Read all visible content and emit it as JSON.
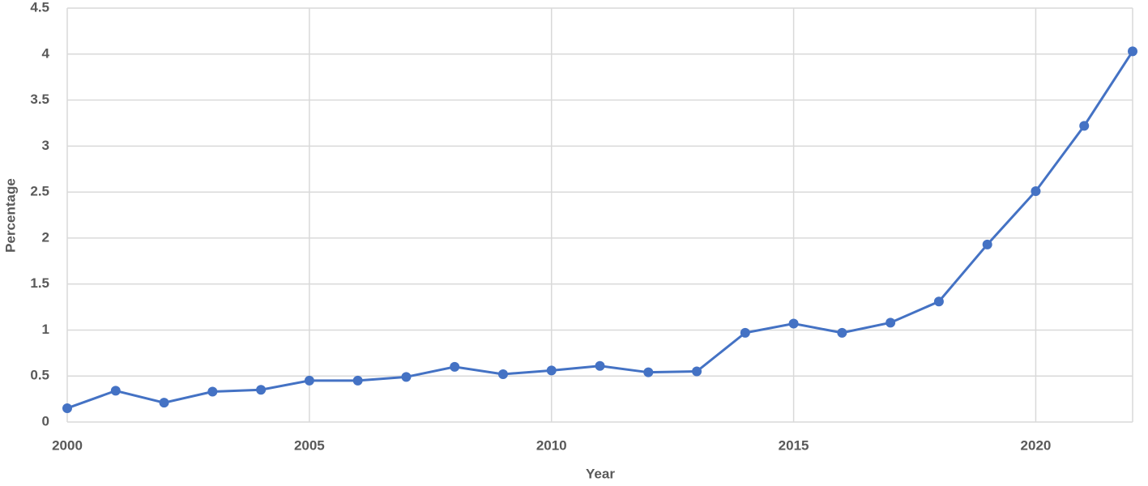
{
  "chart_data": {
    "type": "line",
    "x_label": "Year",
    "y_label": "Percentage",
    "x": [
      2000,
      2001,
      2002,
      2003,
      2004,
      2005,
      2006,
      2007,
      2008,
      2009,
      2010,
      2011,
      2012,
      2013,
      2014,
      2015,
      2016,
      2017,
      2018,
      2019,
      2020,
      2021,
      2022
    ],
    "series": [
      {
        "name": "Percentage",
        "color": "#4472c4",
        "values": [
          0.15,
          0.34,
          0.21,
          0.33,
          0.35,
          0.45,
          0.45,
          0.49,
          0.6,
          0.52,
          0.56,
          0.61,
          0.54,
          0.55,
          0.97,
          1.07,
          0.97,
          1.08,
          1.31,
          1.93,
          2.51,
          3.22,
          4.03
        ]
      }
    ],
    "xlim": [
      2000,
      2022
    ],
    "xticks": [
      2000,
      2005,
      2010,
      2015,
      2020
    ],
    "ylim": [
      0,
      4.5
    ],
    "yticks": [
      0,
      0.5,
      1,
      1.5,
      2,
      2.5,
      3,
      3.5,
      4,
      4.5
    ],
    "grid": true
  }
}
